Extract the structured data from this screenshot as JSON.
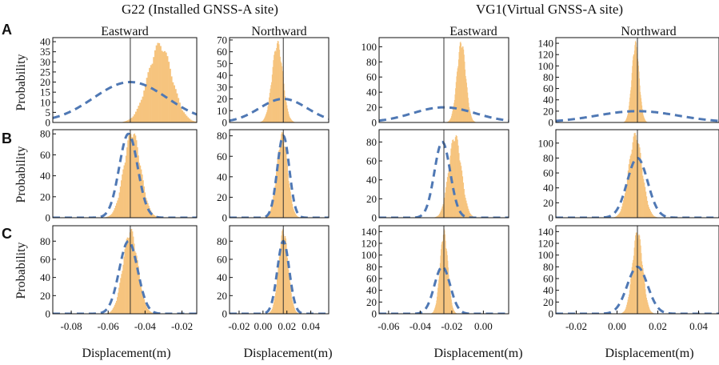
{
  "figure": {
    "group_titles": [
      "G22 (Installed GNSS-A site)",
      "VG1(Virtual GNSS-A site)"
    ],
    "column_titles": [
      "Eastward",
      "Northward",
      "Eastward",
      "Northward"
    ],
    "row_labels": [
      "A",
      "B",
      "C"
    ],
    "ylabel": "Probability",
    "xlabel": "Displacement(m)"
  },
  "colors": {
    "histogram": "#f6c47e",
    "dashed_curve": "#4f78b4",
    "vertical_line": "#333333"
  },
  "chart_data": [
    {
      "panel": "A-G22-East",
      "type": "bar",
      "xlim": [
        -0.09,
        -0.012
      ],
      "ylim": [
        0,
        42
      ],
      "yticks": [
        0,
        5,
        10,
        15,
        20,
        25,
        30,
        35,
        40
      ],
      "xticks": [],
      "truth": -0.048,
      "hist": {
        "mu": -0.032,
        "sigma": 0.0065,
        "peak": 40,
        "n": 70
      },
      "curve": {
        "mu": -0.048,
        "sigma": 0.02,
        "peak": 20
      }
    },
    {
      "panel": "A-G22-North",
      "type": "bar",
      "xlim": [
        -0.028,
        0.055
      ],
      "ylim": [
        0,
        72
      ],
      "yticks": [
        0,
        10,
        20,
        30,
        40,
        50,
        60,
        70
      ],
      "xticks": [],
      "truth": 0.017,
      "hist": {
        "mu": 0.012,
        "sigma": 0.0045,
        "peak": 70,
        "n": 70
      },
      "curve": {
        "mu": 0.017,
        "sigma": 0.02,
        "peak": 20
      }
    },
    {
      "panel": "A-VG1-East",
      "type": "bar",
      "xlim": [
        -0.066,
        0.016
      ],
      "ylim": [
        0,
        112
      ],
      "yticks": [
        0,
        20,
        40,
        60,
        80,
        100
      ],
      "xticks": [],
      "truth": -0.025,
      "hist": {
        "mu": -0.014,
        "sigma": 0.0028,
        "peak": 110,
        "n": 70
      },
      "curve": {
        "mu": -0.025,
        "sigma": 0.02,
        "peak": 20
      }
    },
    {
      "panel": "A-VG1-North",
      "type": "bar",
      "xlim": [
        -0.03,
        0.05
      ],
      "ylim": [
        0,
        150
      ],
      "yticks": [
        0,
        20,
        40,
        60,
        80,
        100,
        120,
        140
      ],
      "xticks": [],
      "truth": 0.01,
      "hist": {
        "mu": 0.009,
        "sigma": 0.0018,
        "peak": 145,
        "n": 70
      },
      "curve": {
        "mu": 0.01,
        "sigma": 0.02,
        "peak": 20
      }
    },
    {
      "panel": "B-G22-East",
      "type": "bar",
      "xlim": [
        -0.09,
        -0.012
      ],
      "ylim": [
        0,
        84
      ],
      "yticks": [
        0,
        20,
        40,
        60,
        80
      ],
      "xticks": [],
      "truth": -0.048,
      "hist": {
        "mu": -0.047,
        "sigma": 0.0045,
        "peak": 85,
        "n": 70
      },
      "curve": {
        "mu": -0.049,
        "sigma": 0.005,
        "peak": 80
      }
    },
    {
      "panel": "B-G22-North",
      "type": "bar",
      "xlim": [
        -0.028,
        0.055
      ],
      "ylim": [
        0,
        86
      ],
      "yticks": [
        0,
        20,
        40,
        60,
        80
      ],
      "xticks": [],
      "truth": 0.017,
      "hist": {
        "mu": 0.016,
        "sigma": 0.0045,
        "peak": 84,
        "n": 70
      },
      "curve": {
        "mu": 0.017,
        "sigma": 0.005,
        "peak": 80
      }
    },
    {
      "panel": "B-VG1-East",
      "type": "bar",
      "xlim": [
        -0.066,
        0.016
      ],
      "ylim": [
        0,
        93
      ],
      "yticks": [
        0,
        20,
        40,
        60,
        80
      ],
      "xticks": [],
      "truth": -0.025,
      "hist": {
        "mu": -0.018,
        "sigma": 0.004,
        "peak": 90,
        "n": 70
      },
      "curve": {
        "mu": -0.026,
        "sigma": 0.005,
        "peak": 80
      }
    },
    {
      "panel": "B-VG1-North",
      "type": "bar",
      "xlim": [
        -0.03,
        0.05
      ],
      "ylim": [
        0,
        118
      ],
      "yticks": [
        0,
        20,
        40,
        60,
        80,
        100
      ],
      "xticks": [],
      "truth": 0.01,
      "hist": {
        "mu": 0.009,
        "sigma": 0.0033,
        "peak": 115,
        "n": 70
      },
      "curve": {
        "mu": 0.01,
        "sigma": 0.005,
        "peak": 80
      }
    },
    {
      "panel": "C-G22-East",
      "type": "bar",
      "xlim": [
        -0.09,
        -0.012
      ],
      "ylim": [
        0,
        97
      ],
      "yticks": [
        0,
        20,
        40,
        60,
        80
      ],
      "xticks": [
        -0.08,
        -0.06,
        -0.04,
        -0.02
      ],
      "xticklabels": [
        "-0.08",
        "-0.06",
        "-0.04",
        "-0.02"
      ],
      "truth": -0.048,
      "hist": {
        "mu": -0.048,
        "sigma": 0.004,
        "peak": 95,
        "n": 70
      },
      "curve": {
        "mu": -0.049,
        "sigma": 0.005,
        "peak": 80
      }
    },
    {
      "panel": "C-G22-North",
      "type": "bar",
      "xlim": [
        -0.028,
        0.055
      ],
      "ylim": [
        0,
        97
      ],
      "yticks": [
        0,
        20,
        40,
        60,
        80
      ],
      "xticks": [
        -0.02,
        0.0,
        0.02,
        0.04
      ],
      "xticklabels": [
        "-0.02",
        "0.00",
        "0.02",
        "0.04"
      ],
      "truth": 0.017,
      "hist": {
        "mu": 0.017,
        "sigma": 0.004,
        "peak": 95,
        "n": 70
      },
      "curve": {
        "mu": 0.017,
        "sigma": 0.005,
        "peak": 80
      }
    },
    {
      "panel": "C-VG1-East",
      "type": "bar",
      "xlim": [
        -0.066,
        0.016
      ],
      "ylim": [
        0,
        150
      ],
      "yticks": [
        0,
        20,
        40,
        60,
        80,
        100,
        120,
        140
      ],
      "xticks": [
        -0.06,
        -0.04,
        -0.02,
        0.0
      ],
      "xticklabels": [
        "-0.06",
        "-0.04",
        "-0.02",
        "0.00"
      ],
      "truth": -0.025,
      "hist": {
        "mu": -0.025,
        "sigma": 0.0025,
        "peak": 145,
        "n": 70
      },
      "curve": {
        "mu": -0.026,
        "sigma": 0.005,
        "peak": 80
      }
    },
    {
      "panel": "C-VG1-North",
      "type": "bar",
      "xlim": [
        -0.03,
        0.05
      ],
      "ylim": [
        0,
        150
      ],
      "yticks": [
        0,
        20,
        40,
        60,
        80,
        100,
        120,
        140
      ],
      "xticks": [
        -0.02,
        0.0,
        0.02,
        0.04
      ],
      "xticklabels": [
        "-0.02",
        "0.00",
        "0.02",
        "0.04"
      ],
      "truth": 0.01,
      "hist": {
        "mu": 0.01,
        "sigma": 0.0025,
        "peak": 145,
        "n": 70
      },
      "curve": {
        "mu": 0.01,
        "sigma": 0.005,
        "peak": 80
      }
    }
  ]
}
